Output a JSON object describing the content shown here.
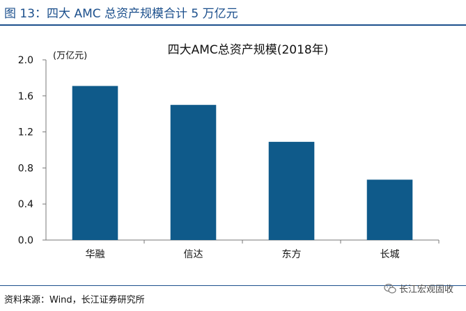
{
  "figure_title": "图 13：四大 AMC 总资产规模合计 5 万亿元",
  "source_note": "资料来源：Wind，长江证券研究所",
  "watermark": "长江宏观固收",
  "colors": {
    "accent": "#1b4f8c",
    "bar": "#0f5a8a"
  },
  "icons": {
    "watermark_icon": "wechat-icon"
  },
  "chart_data": {
    "type": "bar",
    "title": "四大AMC总资产规模(2018年)",
    "ylabel": "(万亿元)",
    "xlabel": "",
    "categories": [
      "华融",
      "信达",
      "东方",
      "长城"
    ],
    "values": [
      1.71,
      1.5,
      1.09,
      0.67
    ],
    "ylim": [
      0,
      2.0
    ],
    "yticks": [
      0.0,
      0.4,
      0.8,
      1.2,
      1.6,
      2.0
    ],
    "ytick_labels": [
      "0.0",
      "0.4",
      "0.8",
      "1.2",
      "1.6",
      "2.0"
    ],
    "grid": false,
    "legend": "none"
  }
}
